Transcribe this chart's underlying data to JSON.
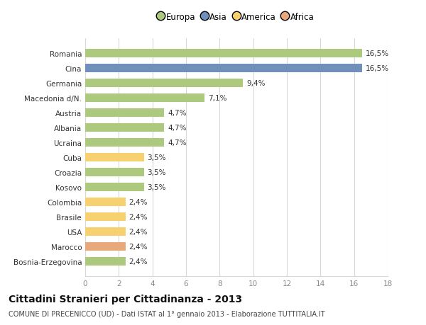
{
  "categories": [
    "Romania",
    "Cina",
    "Germania",
    "Macedonia d/N.",
    "Austria",
    "Albania",
    "Ucraina",
    "Cuba",
    "Croazia",
    "Kosovo",
    "Colombia",
    "Brasile",
    "USA",
    "Marocco",
    "Bosnia-Erzegovina"
  ],
  "values": [
    16.5,
    16.5,
    9.4,
    7.1,
    4.7,
    4.7,
    4.7,
    3.5,
    3.5,
    3.5,
    2.4,
    2.4,
    2.4,
    2.4,
    2.4
  ],
  "labels": [
    "16,5%",
    "16,5%",
    "9,4%",
    "7,1%",
    "4,7%",
    "4,7%",
    "4,7%",
    "3,5%",
    "3,5%",
    "3,5%",
    "2,4%",
    "2,4%",
    "2,4%",
    "2,4%",
    "2,4%"
  ],
  "continent": [
    "Europa",
    "Asia",
    "Europa",
    "Europa",
    "Europa",
    "Europa",
    "Europa",
    "America",
    "Europa",
    "Europa",
    "America",
    "America",
    "America",
    "Africa",
    "Europa"
  ],
  "colors": {
    "Europa": "#adc97e",
    "Asia": "#7090bb",
    "America": "#f7d070",
    "Africa": "#e8a87c"
  },
  "legend_labels": [
    "Europa",
    "Asia",
    "America",
    "Africa"
  ],
  "legend_colors": [
    "#adc97e",
    "#7090bb",
    "#f7d070",
    "#e8a87c"
  ],
  "xlim": [
    0,
    18
  ],
  "xticks": [
    0,
    2,
    4,
    6,
    8,
    10,
    12,
    14,
    16,
    18
  ],
  "title": "Cittadini Stranieri per Cittadinanza - 2013",
  "subtitle": "COMUNE DI PRECENICCO (UD) - Dati ISTAT al 1° gennaio 2013 - Elaborazione TUTTITALIA.IT",
  "bg_color": "#ffffff",
  "grid_color": "#d8d8d8",
  "bar_height": 0.55,
  "label_fontsize": 7.5,
  "ytick_fontsize": 7.5,
  "xtick_fontsize": 7.5,
  "title_fontsize": 10,
  "subtitle_fontsize": 7
}
